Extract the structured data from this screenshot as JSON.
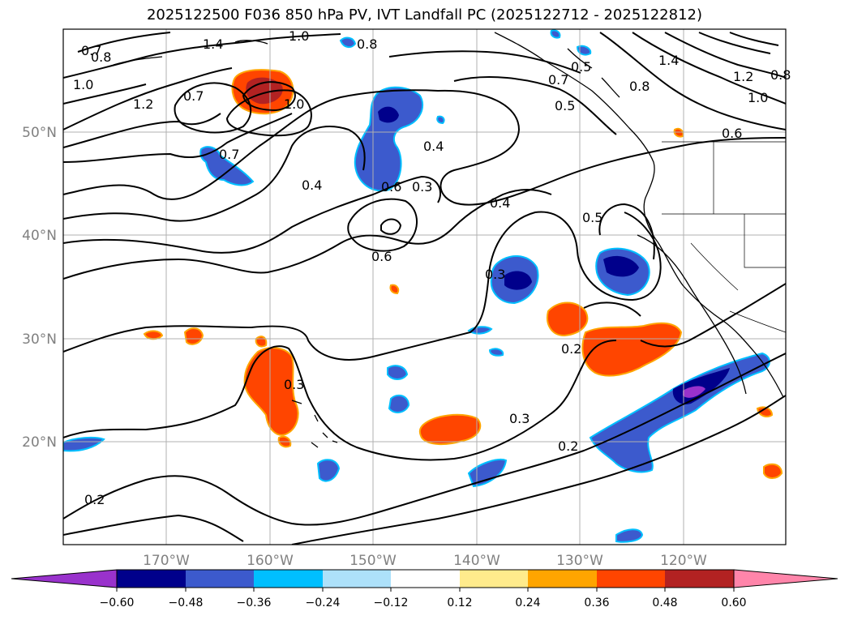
{
  "title": "2025122500 F036 850 hPa PV, IVT Landfall PC (2025122712 - 2025122812)",
  "map": {
    "lon_labels": [
      "170°W",
      "160°W",
      "150°W",
      "140°W",
      "130°W",
      "120°W"
    ],
    "lat_labels": [
      "50°N",
      "40°N",
      "30°N",
      "20°N"
    ],
    "contour_labels": [
      "0.7",
      "0.8",
      "1.4",
      "1.0",
      "0.8",
      "1.0",
      "1.2",
      "0.7",
      "1.0",
      "0.7",
      "0.4",
      "0.4",
      "0.3",
      "0.6",
      "0.6",
      "0.4",
      "0.3",
      "0.5",
      "0.5",
      "0.8",
      "0.7",
      "1.4",
      "1.2",
      "1.0",
      "0.8",
      "0.6",
      "0.3",
      "0.2",
      "0.3",
      "0.2",
      "0.2",
      "0.5"
    ]
  },
  "colorbar": {
    "ticks": [
      "−0.60",
      "−0.48",
      "−0.36",
      "−0.24",
      "−0.12",
      "0.12",
      "0.24",
      "0.36",
      "0.48",
      "0.60"
    ],
    "colors": [
      "#9932CC",
      "#00008B",
      "#3C5ACD",
      "#00BFFF",
      "#ADE1FA",
      "#FFFFFF",
      "#FFEB8C",
      "#FFA500",
      "#FF4500",
      "#B22222",
      "#FF85AA"
    ]
  },
  "colors": {
    "positive_strong": "#B22222",
    "positive": "#FF4500",
    "positive_weak": "#FFA500",
    "negative_strong": "#00008B",
    "negative": "#3C5ACD",
    "negative_weak": "#00BFFF",
    "grid": "#b0b0b0",
    "axis_label": "#808080"
  }
}
